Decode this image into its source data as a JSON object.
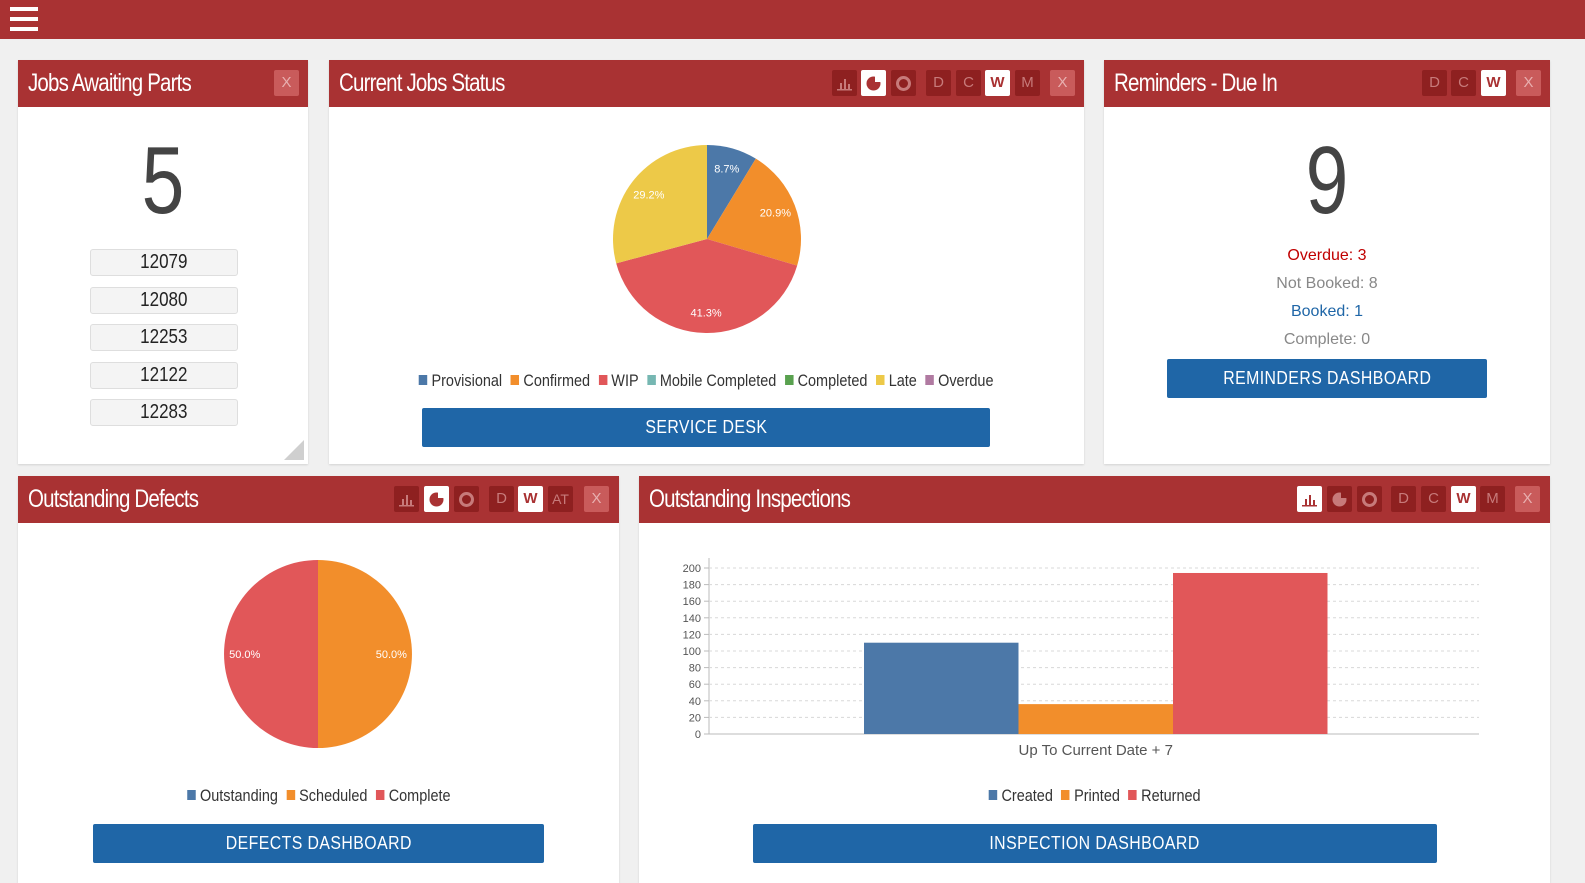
{
  "colors": {
    "accent": "#a93233",
    "button": "#1f66a7",
    "provisional": "#4c78a8",
    "confirmed": "#f28e2b",
    "wip": "#e15759",
    "mobile_completed": "#76b7b2",
    "completed": "#59a14f",
    "late": "#edc948",
    "overdue": "#b07aa1",
    "overdue_text": "#c00000",
    "booked_text": "#1f66a7",
    "muted_text": "#888888"
  },
  "jobs_awaiting_parts": {
    "title": "Jobs Awaiting Parts",
    "close_label": "X",
    "count": "5",
    "jobs": [
      "12079",
      "12080",
      "12253",
      "12122",
      "12283"
    ]
  },
  "current_jobs_status": {
    "title": "Current Jobs Status",
    "view_icons": [
      "bar-chart-icon",
      "pie-chart-icon",
      "donut-chart-icon"
    ],
    "period_buttons": [
      "D",
      "C",
      "W",
      "M"
    ],
    "active_period": "W",
    "close_label": "X",
    "legend": [
      "Provisional",
      "Confirmed",
      "WIP",
      "Mobile Completed",
      "Completed",
      "Late",
      "Overdue"
    ],
    "button_label": "SERVICE DESK"
  },
  "reminders": {
    "title": "Reminders - Due In",
    "period_buttons": [
      "D",
      "C",
      "W"
    ],
    "active_period": "W",
    "close_label": "X",
    "count": "9",
    "overdue": "Overdue: 3",
    "not_booked": "Not Booked: 8",
    "booked": "Booked: 1",
    "complete": "Complete: 0",
    "button_label": "REMINDERS DASHBOARD"
  },
  "outstanding_defects": {
    "title": "Outstanding Defects",
    "view_icons": [
      "bar-chart-icon",
      "pie-chart-icon",
      "donut-chart-icon"
    ],
    "period_buttons": [
      "D",
      "W",
      "AT"
    ],
    "active_period": "W",
    "close_label": "X",
    "legend": [
      "Outstanding",
      "Scheduled",
      "Complete"
    ],
    "button_label": "DEFECTS DASHBOARD"
  },
  "outstanding_inspections": {
    "title": "Outstanding Inspections",
    "view_icons": [
      "bar-chart-icon",
      "pie-chart-icon",
      "donut-chart-icon"
    ],
    "period_buttons": [
      "D",
      "C",
      "W",
      "M"
    ],
    "active_period": "W",
    "close_label": "X",
    "legend": [
      "Created",
      "Printed",
      "Returned"
    ],
    "button_label": "INSPECTION DASHBOARD"
  },
  "chart_data": [
    {
      "type": "pie",
      "title": "",
      "labels": [
        "Provisional",
        "Confirmed",
        "WIP",
        "Late"
      ],
      "values": [
        8.7,
        20.9,
        41.3,
        29.2
      ],
      "value_labels": [
        "8.7%",
        "20.9%",
        "41.3%",
        "29.2%"
      ],
      "colors": [
        "#4c78a8",
        "#f28e2b",
        "#e15759",
        "#edc948"
      ],
      "legend_placement": "bottom"
    },
    {
      "type": "pie",
      "title": "",
      "labels": [
        "Scheduled",
        "Complete"
      ],
      "values": [
        50.0,
        50.0
      ],
      "value_labels": [
        "50.0%",
        "50.0%"
      ],
      "colors": [
        "#f28e2b",
        "#e15759"
      ],
      "legend_placement": "bottom"
    },
    {
      "type": "bar",
      "title": "",
      "categories": [
        "Up To Current Date + 7"
      ],
      "series": [
        {
          "name": "Created",
          "values": [
            110
          ],
          "color": "#4c78a8"
        },
        {
          "name": "Printed",
          "values": [
            36
          ],
          "color": "#f28e2b"
        },
        {
          "name": "Returned",
          "values": [
            194
          ],
          "color": "#e15759"
        }
      ],
      "ylim": [
        0,
        200
      ],
      "yticks": [
        0,
        20,
        40,
        60,
        80,
        100,
        120,
        140,
        160,
        180,
        200
      ],
      "grid": true,
      "legend_placement": "bottom"
    }
  ]
}
